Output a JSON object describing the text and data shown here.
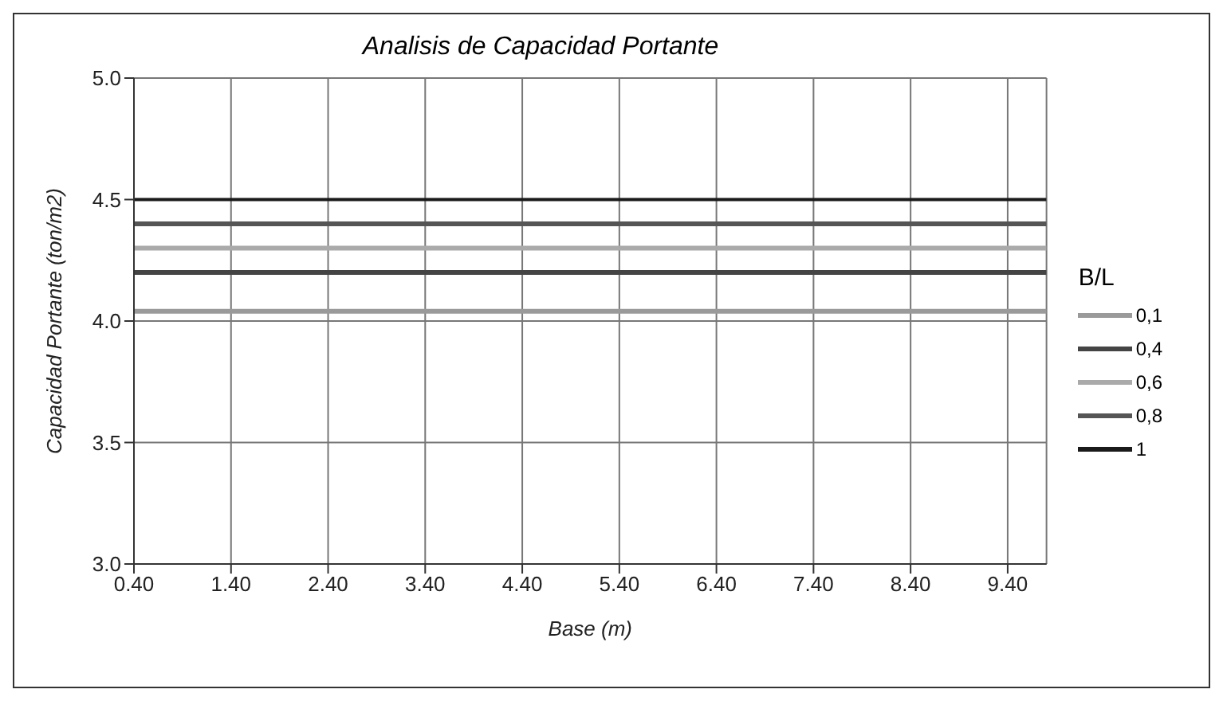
{
  "chart_data": {
    "type": "line",
    "title": "Analisis de Capacidad Portante",
    "xlabel": "Base (m)",
    "ylabel": "Capacidad Portante (ton/m2)",
    "legend_title": "B/L",
    "x": [
      0.4,
      9.8
    ],
    "series": [
      {
        "name": "1",
        "color": "#1a1a1a",
        "values": [
          4.5,
          4.5
        ]
      },
      {
        "name": "0,8",
        "color": "#555555",
        "values": [
          4.4,
          4.4
        ]
      },
      {
        "name": "0,6",
        "color": "#aaaaaa",
        "values": [
          4.3,
          4.3
        ]
      },
      {
        "name": "0,4",
        "color": "#444444",
        "values": [
          4.2,
          4.2
        ]
      },
      {
        "name": "0,1",
        "color": "#9a9a9a",
        "values": [
          4.04,
          4.04
        ]
      }
    ],
    "xlim": [
      0.4,
      9.8
    ],
    "xticks": [
      {
        "value": 0.4,
        "label": "0.40"
      },
      {
        "value": 1.4,
        "label": "1.40"
      },
      {
        "value": 2.4,
        "label": "2.40"
      },
      {
        "value": 3.4,
        "label": "3.40"
      },
      {
        "value": 4.4,
        "label": "4.40"
      },
      {
        "value": 5.4,
        "label": "5.40"
      },
      {
        "value": 6.4,
        "label": "6.40"
      },
      {
        "value": 7.4,
        "label": "7.40"
      },
      {
        "value": 8.4,
        "label": "8.40"
      },
      {
        "value": 9.4,
        "label": "9.40"
      }
    ],
    "ylim": [
      3.0,
      5.0
    ],
    "yticks": [
      {
        "value": 3.0,
        "label": "3.0"
      },
      {
        "value": 3.5,
        "label": "3.5"
      },
      {
        "value": 4.0,
        "label": "4.0"
      },
      {
        "value": 4.5,
        "label": "4.5"
      },
      {
        "value": 5.0,
        "label": "5.0"
      }
    ],
    "grid": true,
    "legend": "right",
    "marker": "none",
    "line_style": "solid"
  }
}
